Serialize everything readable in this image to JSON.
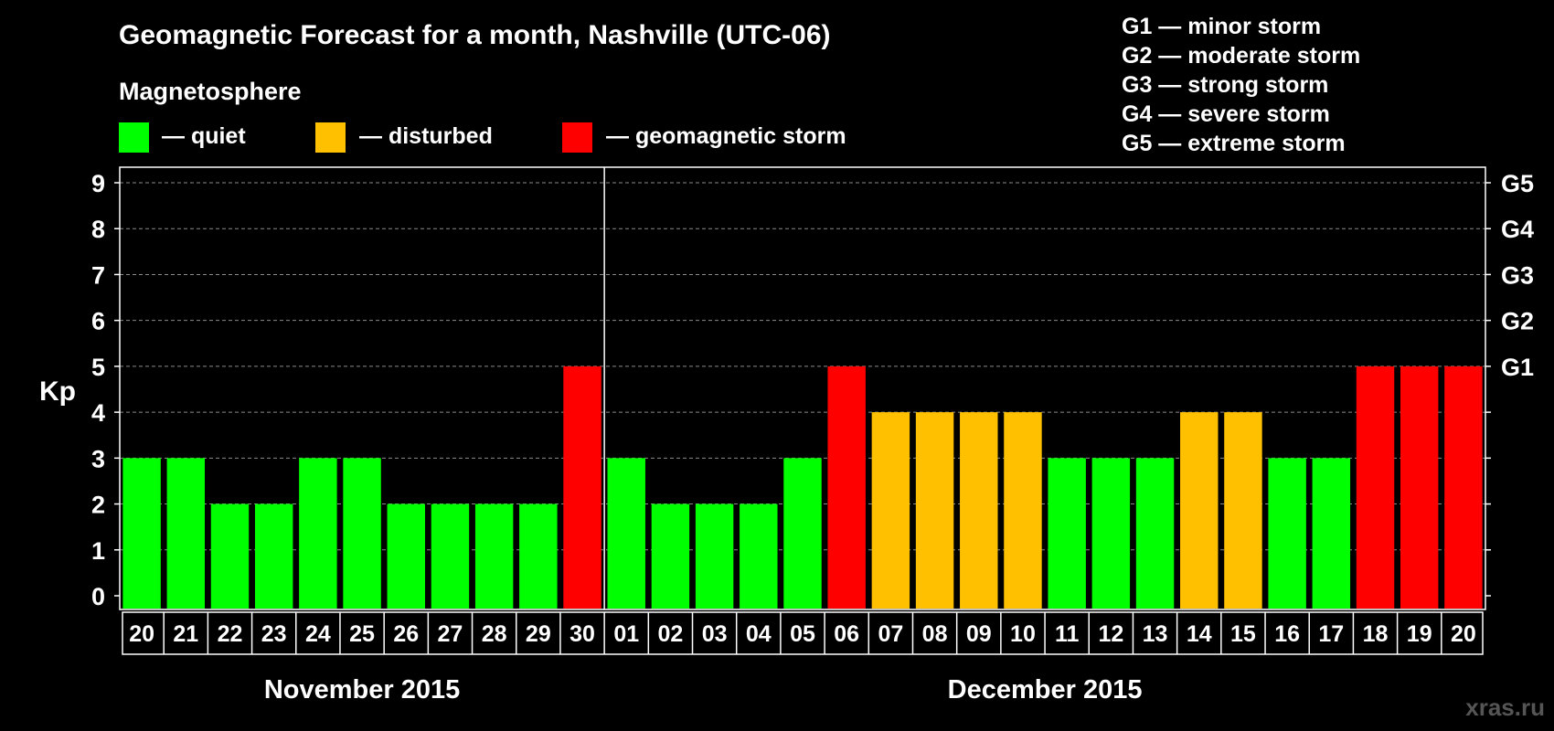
{
  "title": "Geomagnetic Forecast for a month, Nashville (UTC-06)",
  "subtitle": "Magnetosphere",
  "legend": [
    {
      "label": "— quiet",
      "color": "#00ff00"
    },
    {
      "label": "— disturbed",
      "color": "#ffc000"
    },
    {
      "label": "— geomagnetic storm",
      "color": "#ff0000"
    }
  ],
  "storm_scale": [
    "G1 — minor storm",
    "G2 — moderate storm",
    "G3 — strong storm",
    "G4 — severe storm",
    "G5 — extreme storm"
  ],
  "watermark": "xras.ru",
  "colors": {
    "quiet": "#00ff00",
    "disturbed": "#ffc000",
    "storm": "#ff0000",
    "background": "#000000"
  },
  "chart_data": {
    "type": "bar",
    "ylabel": "Kp",
    "ylim": [
      0,
      9
    ],
    "yticks": [
      0,
      1,
      2,
      3,
      4,
      5,
      6,
      7,
      8,
      9
    ],
    "right_ticks": [
      {
        "kp": 5,
        "label": "G1"
      },
      {
        "kp": 6,
        "label": "G2"
      },
      {
        "kp": 7,
        "label": "G3"
      },
      {
        "kp": 8,
        "label": "G4"
      },
      {
        "kp": 9,
        "label": "G5"
      }
    ],
    "grid": true,
    "categories": [
      "20",
      "21",
      "22",
      "23",
      "24",
      "25",
      "26",
      "27",
      "28",
      "29",
      "30",
      "01",
      "02",
      "03",
      "04",
      "05",
      "06",
      "07",
      "08",
      "09",
      "10",
      "11",
      "12",
      "13",
      "14",
      "15",
      "16",
      "17",
      "18",
      "19",
      "20"
    ],
    "values": [
      3,
      3,
      2,
      2,
      3,
      3,
      2,
      2,
      2,
      2,
      5,
      3,
      2,
      2,
      2,
      3,
      5,
      4,
      4,
      4,
      4,
      3,
      3,
      3,
      4,
      4,
      3,
      3,
      5,
      5,
      5
    ],
    "levels": [
      "quiet",
      "quiet",
      "quiet",
      "quiet",
      "quiet",
      "quiet",
      "quiet",
      "quiet",
      "quiet",
      "quiet",
      "storm",
      "quiet",
      "quiet",
      "quiet",
      "quiet",
      "quiet",
      "storm",
      "disturbed",
      "disturbed",
      "disturbed",
      "disturbed",
      "quiet",
      "quiet",
      "quiet",
      "disturbed",
      "disturbed",
      "quiet",
      "quiet",
      "storm",
      "storm",
      "storm"
    ],
    "months": [
      {
        "label": "November 2015",
        "first_index": 0,
        "last_index": 10
      },
      {
        "label": "December 2015",
        "first_index": 11,
        "last_index": 30
      }
    ]
  }
}
